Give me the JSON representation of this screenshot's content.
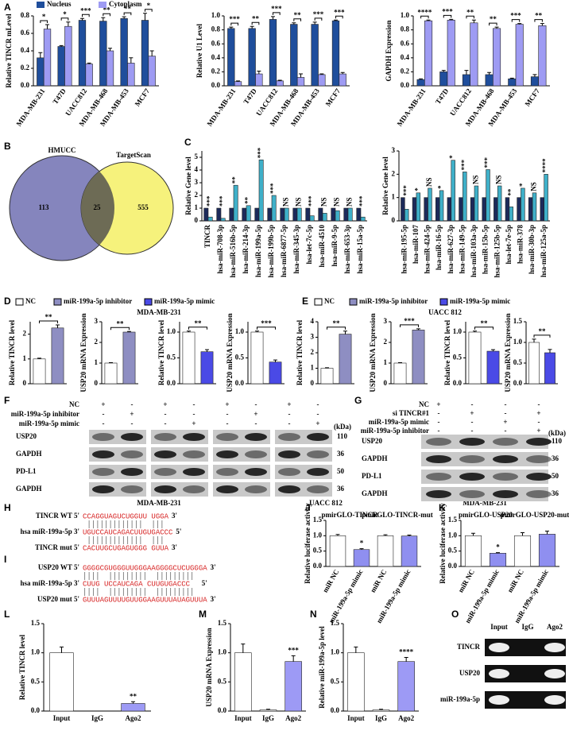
{
  "panel_labels": [
    "A",
    "B",
    "C",
    "D",
    "E",
    "F",
    "G",
    "H",
    "I",
    "J",
    "K",
    "L",
    "M",
    "N",
    "O"
  ],
  "captions": [
    "MDA-MB-231",
    "UACC 812",
    "MDA-MB-231",
    "MDA-MB-231",
    "UACC 812"
  ],
  "legends": [
    [
      {
        "name": "NC",
        "color": "#ffffff"
      },
      {
        "name": "miR-199a-5p inhibitor",
        "color": "#8e8ec2"
      },
      {
        "name": "miR-199a-5p mimic",
        "color": "#4a4ae6"
      }
    ],
    [
      {
        "name": "NC",
        "color": "#ffffff"
      },
      {
        "name": "miR-199a-5p inhibitor",
        "color": "#8e8ec2"
      },
      {
        "name": "miR-199a-5p mimic",
        "color": "#4a4ae6"
      }
    ]
  ],
  "venn": {
    "sets": [
      {
        "name": "HMUCC",
        "count": 113
      },
      {
        "name": "TargetScan",
        "count": 555
      }
    ],
    "overlap": 25
  },
  "blot_f": {
    "conditions": [
      {
        "name": "NC",
        "signs": [
          "+",
          "-",
          "+",
          "-",
          "+",
          "-",
          "+",
          "-"
        ]
      },
      {
        "name": "miR-199a-5p inhibitor",
        "signs": [
          "-",
          "+",
          "-",
          "-",
          "-",
          "+",
          "-",
          "-"
        ]
      },
      {
        "name": "miR-199a-5p mimic",
        "signs": [
          "-",
          "-",
          "-",
          "+",
          "-",
          "-",
          "-",
          "+"
        ]
      }
    ],
    "unit": "(kDa)",
    "bands": [
      {
        "name": "USP20",
        "kda": 110
      },
      {
        "name": "GAPDH",
        "kda": 36
      },
      {
        "name": "PD-L1",
        "kda": 50
      },
      {
        "name": "GAPDH",
        "kda": 36
      }
    ]
  },
  "blot_g": {
    "conditions": [
      {
        "name": "NC",
        "signs": [
          "+",
          "-",
          "-",
          "-"
        ]
      },
      {
        "name": "si TINCR#1",
        "signs": [
          "-",
          "+",
          "-",
          "+"
        ]
      },
      {
        "name": "miR-199a-5p mimic",
        "signs": [
          "-",
          "-",
          "+",
          "-"
        ]
      },
      {
        "name": "miR-199a-5p inhibitor",
        "signs": [
          "-",
          "-",
          "-",
          "+"
        ]
      }
    ],
    "unit": "(kDa)",
    "bands": [
      {
        "name": "USP20",
        "kda": 110
      },
      {
        "name": "GAPDH",
        "kda": 36
      },
      {
        "name": "PD-L1",
        "kda": 50
      },
      {
        "name": "GAPDH",
        "kda": 36
      }
    ]
  },
  "seq_h": [
    {
      "label": "TINCR WT 5'",
      "seq": "CCAGGUAGUCUGGUU UGGA",
      "end": "3'"
    },
    {
      "label": "hsa miR-199a-5p 3'",
      "seq": "UGUCCAUCAGACUUGUGACCC",
      "end": "5'"
    },
    {
      "label": "TINCR mut 5'",
      "seq": "CACUUGCUGAGUGGG GUUA",
      "end": "3'"
    }
  ],
  "seq_i": [
    {
      "label": "USP20 WT 5'",
      "seq": "GGGGCGUGGGUUGGGAAGGGGCUCUGGGA",
      "end": "3'"
    },
    {
      "label": "hsa miR-199a-5p 3'",
      "seq": "CUUG  UCCAUCAGA  CUUGUGACCC",
      "end": "5'"
    },
    {
      "label": "USP20 mut 5'",
      "seq": "GUUUAGUUUUGUUGGAAGUUUAUAGUUUA",
      "end": "3'"
    }
  ],
  "gel_o": {
    "lanes": [
      "Input",
      "IgG",
      "Ago2"
    ],
    "rows": [
      "TINCR",
      "USP20",
      "miR-199a-5p"
    ]
  },
  "chart_data": [
    {
      "type": "bar",
      "ylabel": "Relative TINCR mLevel",
      "categories": [
        "MDA-MB-231",
        "T47D",
        "UACC812",
        "MDA-MB-468",
        "MDA-MB-453",
        "MCF7"
      ],
      "series": [
        {
          "name": "Nucleus",
          "color": "#1f4e9c",
          "values": [
            0.32,
            0.45,
            0.75,
            0.74,
            0.77,
            0.75
          ],
          "errors": [
            0.06,
            0.01,
            0.02,
            0.04,
            0.02,
            0.08
          ]
        },
        {
          "name": "Cytoplasm",
          "color": "#9e9bf3",
          "values": [
            0.65,
            0.68,
            0.25,
            0.4,
            0.26,
            0.34
          ],
          "errors": [
            0.05,
            0.05,
            0.01,
            0.03,
            0.06,
            0.06
          ]
        }
      ],
      "ylim": [
        0,
        0.8
      ],
      "yticks": [
        {
          "value": 0,
          "label": "0.0"
        },
        0.2,
        0.4,
        0.6,
        0.8
      ],
      "annotations": [
        "*",
        "*",
        "***",
        "**",
        "**",
        "*"
      ]
    },
    {
      "type": "bar",
      "ylabel": "Relative U1 Level",
      "categories": [
        "MDA-MB-231",
        "T47D",
        "UACC812",
        "MDA-MB-468",
        "MDA-MB-453",
        "MCF7"
      ],
      "series": [
        {
          "color": "#1f4e9c",
          "values": [
            0.82,
            0.82,
            0.95,
            0.88,
            0.88,
            0.93
          ],
          "errors": [
            0.02,
            0.03,
            0.04,
            0.02,
            0.03,
            0.01
          ]
        },
        {
          "color": "#9e9bf3",
          "values": [
            0.06,
            0.17,
            0.07,
            0.12,
            0.16,
            0.17
          ],
          "errors": [
            0.01,
            0.04,
            0.01,
            0.05,
            0.01,
            0.02
          ]
        }
      ],
      "ylim": [
        0,
        1
      ],
      "yticks": [
        {
          "value": 0,
          "label": "0.0"
        },
        0.2,
        0.4,
        0.6,
        0.8,
        {
          "value": 1,
          "label": "1.0"
        }
      ],
      "annotations": [
        "***",
        "**",
        "***",
        "**",
        "***",
        "***"
      ]
    },
    {
      "type": "bar",
      "ylabel": "GAPDH Expression",
      "categories": [
        "MDA-MB-231",
        "T47D",
        "UACC812",
        "MDA-MB-468",
        "MDA-MB-453",
        "MCF7"
      ],
      "series": [
        {
          "color": "#1f4e9c",
          "values": [
            0.09,
            0.2,
            0.16,
            0.16,
            0.1,
            0.13
          ],
          "errors": [
            0.01,
            0.02,
            0.06,
            0.03,
            0.01,
            0.03
          ]
        },
        {
          "color": "#9e9bf3",
          "values": [
            0.93,
            0.94,
            0.9,
            0.82,
            0.88,
            0.86
          ],
          "errors": [
            0.01,
            0.01,
            0.04,
            0.02,
            0.01,
            0.03
          ]
        }
      ],
      "ylim": [
        0,
        1
      ],
      "yticks": [
        {
          "value": 0,
          "label": "0.0"
        },
        0.2,
        0.4,
        0.6,
        0.8,
        {
          "value": 1,
          "label": "1.0"
        }
      ],
      "annotations": [
        "****",
        "***",
        "**",
        "**",
        "***",
        "**"
      ]
    },
    {
      "type": "bar",
      "ylabel": "Relative Gene level",
      "categories": [
        "TINCR",
        "hsa-miR-708-3p",
        "hsa-miR-516b-5p",
        "hsa-miR-214-3p",
        "hsa-miR-199a-5p",
        "hsa-miR-199b-5p",
        "hsa-miR-6877-5p",
        "hsa-miR-345-3p",
        "hsa-let-7c-5p",
        "hsa-miR-4510",
        "hsa-miR-9-5p",
        "hsa-miR-653-3p",
        "hsa-miR-15a-5p"
      ],
      "series": [
        {
          "color": "#1c2a5a",
          "values": [
            1,
            1,
            1,
            1,
            1,
            1,
            1,
            1,
            1,
            1,
            1,
            1,
            1
          ]
        },
        {
          "color": "#3fb0c9",
          "values": [
            0.3,
            0.2,
            2.8,
            1.2,
            4.8,
            2.0,
            1.0,
            1.0,
            0.4,
            0.6,
            0.8,
            1.0,
            0.3
          ]
        }
      ],
      "ylim": [
        0,
        5.5
      ],
      "yticks": [
        0,
        1,
        2,
        3,
        4,
        5
      ],
      "annotations": [
        "***",
        "***",
        "**",
        "**",
        "***",
        "***",
        "NS",
        "NS",
        "***",
        "NS",
        "NS",
        "NS",
        "***"
      ]
    },
    {
      "type": "bar",
      "ylabel": "Relative Gene level",
      "categories": [
        "hsa-miR-195-5p",
        "hsa-miR-107",
        "hsa-miR-424-5p",
        "hsa-miR-16-5p",
        "hsa-miR-627-3p",
        "hsa-miR-149-5p",
        "hsa-miR-103a-3p",
        "hsa-miR-15b-5p",
        "hsa-miR-125b-5p",
        "hsa-let-7e-5p",
        "hsa-miR-378",
        "hsa-miR-30b-3p",
        "hsa-miR-125a-5p"
      ],
      "series": [
        {
          "color": "#1c2a5a",
          "values": [
            1,
            1,
            1,
            1,
            1,
            1,
            1,
            1,
            1,
            1,
            1,
            1,
            1
          ]
        },
        {
          "color": "#3fb0c9",
          "values": [
            0.5,
            1.2,
            1.4,
            1.3,
            2.6,
            2.1,
            1.5,
            2.2,
            1.5,
            0.6,
            1.4,
            1.2,
            2.0
          ]
        }
      ],
      "ylim": [
        0,
        3
      ],
      "yticks": [
        0,
        1,
        2,
        3
      ],
      "annotations": [
        "***",
        "*",
        "NS",
        "*",
        "*",
        "***",
        "NS",
        "***",
        "NS",
        "**",
        "*",
        "NS",
        "****"
      ]
    },
    {
      "type": "bar",
      "ylabel": "Relative TINCR  level",
      "categories": [
        null,
        null
      ],
      "series": [
        {
          "colors": [
            "#ffffff",
            "#8e8ec2"
          ],
          "values": [
            1,
            2.25
          ],
          "errors": [
            0.03,
            0.12
          ]
        }
      ],
      "ylim": [
        0,
        2.5
      ],
      "yticks": [
        0,
        1,
        2
      ],
      "significance": "**"
    },
    {
      "type": "bar",
      "ylabel": "USP20  mRNA Expression",
      "categories": [
        null,
        null
      ],
      "series": [
        {
          "colors": [
            "#ffffff",
            "#8e8ec2"
          ],
          "values": [
            1,
            2.5
          ],
          "errors": [
            0.02,
            0.03
          ]
        }
      ],
      "ylim": [
        0,
        3
      ],
      "yticks": [
        0,
        1,
        2,
        3
      ],
      "significance": "**"
    },
    {
      "type": "bar",
      "ylabel": "Relative TINCR  level",
      "categories": [
        null,
        null
      ],
      "series": [
        {
          "colors": [
            "#ffffff",
            "#4a4ae6"
          ],
          "values": [
            1,
            0.62
          ],
          "errors": [
            0.02,
            0.04
          ]
        }
      ],
      "ylim": [
        0,
        1.2
      ],
      "yticks": [
        {
          "value": 0,
          "label": "0.0"
        },
        0.5,
        {
          "value": 1,
          "label": "1.0"
        }
      ],
      "significance": "**"
    },
    {
      "type": "bar",
      "ylabel": "USP20  mRNA Expression",
      "categories": [
        null,
        null
      ],
      "series": [
        {
          "colors": [
            "#ffffff",
            "#4a4ae6"
          ],
          "values": [
            1,
            0.42
          ],
          "errors": [
            0.02,
            0.04
          ]
        }
      ],
      "ylim": [
        0,
        1.2
      ],
      "yticks": [
        {
          "value": 0,
          "label": "0.0"
        },
        0.5,
        {
          "value": 1,
          "label": "1.0"
        }
      ],
      "significance": "***"
    },
    {
      "type": "bar",
      "ylabel": "Relative TINCR  level",
      "categories": [
        null,
        null
      ],
      "series": [
        {
          "colors": [
            "#ffffff",
            "#8e8ec2"
          ],
          "values": [
            1,
            3.2
          ],
          "errors": [
            0.03,
            0.2
          ]
        }
      ],
      "ylim": [
        0,
        4
      ],
      "yticks": [
        0,
        1,
        2,
        3,
        4
      ],
      "significance": "**"
    },
    {
      "type": "bar",
      "ylabel": "USP20  mRNA Expression",
      "categories": [
        null,
        null
      ],
      "series": [
        {
          "colors": [
            "#ffffff",
            "#8e8ec2"
          ],
          "values": [
            1,
            2.6
          ],
          "errors": [
            0.02,
            0.06
          ]
        }
      ],
      "ylim": [
        0,
        3
      ],
      "yticks": [
        0,
        1,
        2,
        3
      ],
      "significance": "***"
    },
    {
      "type": "bar",
      "ylabel": "Relative TINCR  level",
      "categories": [
        null,
        null
      ],
      "series": [
        {
          "colors": [
            "#ffffff",
            "#4a4ae6"
          ],
          "values": [
            1,
            0.63
          ],
          "errors": [
            0.02,
            0.03
          ]
        }
      ],
      "ylim": [
        0,
        1.2
      ],
      "yticks": [
        {
          "value": 0,
          "label": "0.0"
        },
        0.5,
        {
          "value": 1,
          "label": "1.0"
        }
      ],
      "significance": "**"
    },
    {
      "type": "bar",
      "ylabel": "USP20 mRNA Expression",
      "categories": [
        null,
        null
      ],
      "series": [
        {
          "colors": [
            "#ffffff",
            "#4a4ae6"
          ],
          "values": [
            1,
            0.75
          ],
          "errors": [
            0.08,
            0.08
          ]
        }
      ],
      "ylim": [
        0,
        1.5
      ],
      "yticks": [
        {
          "value": 0,
          "label": "0.0"
        },
        0.5,
        {
          "value": 1,
          "label": "1.0"
        },
        1.5
      ],
      "significance": "**"
    },
    {
      "type": "bar",
      "ylabel": "Relative luciferase activity",
      "group_titles": [
        "pmirGLO-TINCR",
        "pmirGLO-TINCR-mut"
      ],
      "categories": [
        "miR NC",
        "miR-199a-5p mimic",
        "miR NC",
        "miR-199a-5p mimic"
      ],
      "series": [
        {
          "colors": [
            "#ffffff",
            "#8f8ff0",
            "#ffffff",
            "#8f8ff0"
          ],
          "values": [
            1,
            0.55,
            1,
            0.99
          ],
          "errors": [
            0.04,
            0.03,
            0.03,
            0.03
          ]
        }
      ],
      "ylim": [
        0,
        1.5
      ],
      "yticks": [
        {
          "value": 0,
          "label": "0.0"
        },
        0.5,
        {
          "value": 1,
          "label": "1.0"
        },
        1.5
      ],
      "annotations": [
        null,
        "*",
        null,
        null
      ]
    },
    {
      "type": "bar",
      "ylabel": "Relative luciferase activity",
      "group_titles": [
        "pmirGLO-USP20",
        "pmirGLO-USP20-mut"
      ],
      "categories": [
        "miR NC",
        "miR-199a-5p mimic",
        "miR NC",
        "miR-199a-5p mimic"
      ],
      "series": [
        {
          "colors": [
            "#ffffff",
            "#8f8ff0",
            "#ffffff",
            "#8f8ff0"
          ],
          "values": [
            1,
            0.43,
            1,
            1.05
          ],
          "errors": [
            0.08,
            0.02,
            0.1,
            0.1
          ]
        }
      ],
      "ylim": [
        0,
        1.5
      ],
      "yticks": [
        {
          "value": 0,
          "label": "0.0"
        },
        0.5,
        {
          "value": 1,
          "label": "1.0"
        },
        1.5
      ],
      "annotations": [
        null,
        "*",
        null,
        null
      ]
    },
    {
      "type": "bar",
      "ylabel": "Relative TINCR  level",
      "categories": [
        "Input",
        "IgG",
        "Ago2"
      ],
      "series": [
        {
          "colors": [
            "#ffffff",
            "#ffffff",
            "#9d9af5"
          ],
          "values": [
            1,
            0,
            0.13
          ],
          "errors": [
            0.1,
            0,
            0.03
          ]
        }
      ],
      "ylim": [
        0,
        1.5
      ],
      "yticks": [
        {
          "value": 0,
          "label": "0.0"
        },
        0.5,
        {
          "value": 1,
          "label": "1.0"
        },
        1.5
      ],
      "annotations": [
        null,
        null,
        "**"
      ]
    },
    {
      "type": "bar",
      "ylabel": "USP20 mRNA Expression",
      "categories": [
        "Input",
        "IgG",
        "Ago2"
      ],
      "series": [
        {
          "colors": [
            "#ffffff",
            "#ffffff",
            "#9d9af5"
          ],
          "values": [
            1,
            0.02,
            0.85
          ],
          "errors": [
            0.15,
            0.01,
            0.1
          ]
        }
      ],
      "ylim": [
        0,
        1.5
      ],
      "yticks": [
        {
          "value": 0,
          "label": "0.0"
        },
        0.5,
        {
          "value": 1,
          "label": "1.0"
        },
        1.5
      ],
      "annotations": [
        null,
        null,
        "***"
      ]
    },
    {
      "type": "bar",
      "ylabel": "Relative miR-199a-5p level",
      "categories": [
        "Input",
        "IgG",
        "Ago2"
      ],
      "series": [
        {
          "colors": [
            "#ffffff",
            "#ffffff",
            "#9d9af5"
          ],
          "values": [
            1,
            0.02,
            0.85
          ],
          "errors": [
            0.1,
            0.01,
            0.07
          ]
        }
      ],
      "ylim": [
        0,
        1.5
      ],
      "yticks": [
        {
          "value": 0,
          "label": "0.0"
        },
        0.5,
        {
          "value": 1,
          "label": "1.0"
        },
        1.5
      ],
      "annotations": [
        null,
        null,
        "****"
      ]
    }
  ]
}
